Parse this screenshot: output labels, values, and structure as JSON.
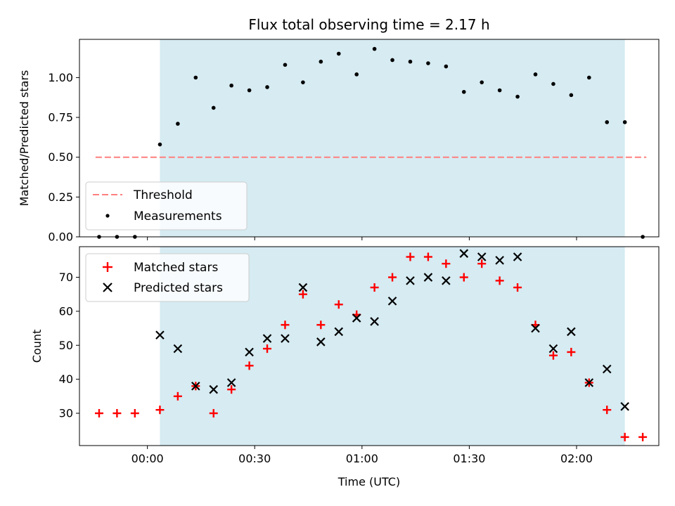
{
  "chart_data": [
    {
      "type": "scatter",
      "title": "Flux total observing time = 2.17 h",
      "xlabel": "",
      "ylabel": "Matched/Predicted stars",
      "ylim": [
        0,
        1.24
      ],
      "yticks": [
        "0.00",
        "0.25",
        "0.50",
        "0.75",
        "1.00"
      ],
      "legend": {
        "placement": "lower-left",
        "entries": [
          "Threshold",
          "Measurements"
        ]
      },
      "threshold": {
        "name": "Threshold",
        "value": 0.5,
        "color": "#ff7f7f"
      },
      "shaded_interval": {
        "start_min": 3.5,
        "end_min": 133.5,
        "color": "#add8e6"
      },
      "series": [
        {
          "name": "Measurements",
          "color": "#000000",
          "x_min": [
            -13.5,
            -8.5,
            -3.5,
            3.5,
            8.5,
            13.5,
            18.5,
            23.5,
            28.5,
            33.5,
            38.5,
            43.5,
            48.5,
            53.5,
            58.5,
            63.5,
            68.5,
            73.5,
            78.5,
            83.5,
            88.5,
            93.5,
            98.5,
            103.5,
            108.5,
            113.5,
            118.5,
            123.5,
            128.5,
            133.5,
            138.5
          ],
          "values": [
            0.0,
            0.0,
            0.0,
            0.58,
            0.71,
            1.0,
            0.81,
            0.95,
            0.92,
            0.94,
            1.08,
            0.97,
            1.1,
            1.15,
            1.02,
            1.18,
            1.11,
            1.1,
            1.09,
            1.07,
            0.91,
            0.97,
            0.92,
            0.88,
            1.02,
            0.96,
            0.89,
            1.0,
            0.72,
            0.72,
            0.0
          ]
        }
      ]
    },
    {
      "type": "scatter",
      "title": "",
      "xlabel": "Time (UTC)",
      "ylabel": "Count",
      "ylim": [
        20.5,
        79
      ],
      "yticks": [
        "30",
        "40",
        "50",
        "60",
        "70"
      ],
      "xticks": [
        "00:00",
        "00:30",
        "01:00",
        "01:30",
        "02:00"
      ],
      "xtick_minutes": [
        0,
        30,
        60,
        90,
        120
      ],
      "xlim_min": [
        -19,
        143
      ],
      "legend": {
        "placement": "top-left",
        "entries": [
          "Matched stars",
          "Predicted stars"
        ]
      },
      "shaded_interval": {
        "start_min": 3.5,
        "end_min": 133.5,
        "color": "#add8e6"
      },
      "series": [
        {
          "name": "Matched stars",
          "marker": "plus",
          "color": "#ff0000",
          "x_min": [
            -13.5,
            -8.5,
            -3.5,
            3.5,
            8.5,
            13.5,
            18.5,
            23.5,
            28.5,
            33.5,
            38.5,
            43.5,
            48.5,
            53.5,
            58.5,
            63.5,
            68.5,
            73.5,
            78.5,
            83.5,
            88.5,
            93.5,
            98.5,
            103.5,
            108.5,
            113.5,
            118.5,
            123.5,
            128.5,
            133.5,
            138.5
          ],
          "values": [
            30,
            30,
            30,
            31,
            35,
            38,
            30,
            37,
            44,
            49,
            56,
            65,
            56,
            62,
            59,
            67,
            70,
            76,
            76,
            74,
            70,
            74,
            69,
            67,
            56,
            47,
            48,
            39,
            31,
            23,
            23
          ]
        },
        {
          "name": "Predicted stars",
          "marker": "x",
          "color": "#000000",
          "x_min": [
            3.5,
            8.5,
            13.5,
            18.5,
            23.5,
            28.5,
            33.5,
            38.5,
            43.5,
            48.5,
            53.5,
            58.5,
            63.5,
            68.5,
            73.5,
            78.5,
            83.5,
            88.5,
            93.5,
            98.5,
            103.5,
            108.5,
            113.5,
            118.5,
            123.5,
            128.5,
            133.5
          ],
          "values": [
            53,
            49,
            38,
            37,
            39,
            48,
            52,
            52,
            67,
            51,
            54,
            58,
            57,
            63,
            69,
            70,
            69,
            77,
            76,
            75,
            76,
            55,
            49,
            54,
            39,
            43,
            32
          ]
        }
      ]
    }
  ]
}
